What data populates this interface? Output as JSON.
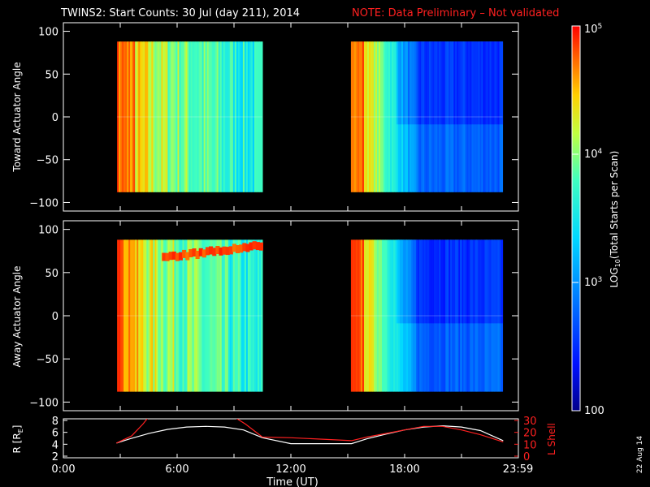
{
  "header": {
    "title": "TWINS2: Start Counts: 30 Jul (day 211), 2014",
    "note": "NOTE: Data Preliminary – Not validated",
    "title_color": "#ffffff",
    "note_color": "#ff2020"
  },
  "date_stamp": "22 Aug 14",
  "chart_data": [
    {
      "type": "heatmap",
      "panel": "toward",
      "ylabel": "Toward Actuator Angle",
      "ylim": [
        -110,
        110
      ],
      "yticks": [
        "100",
        "50",
        "0",
        "−50",
        "−100"
      ],
      "xlim_hours": [
        0,
        24
      ],
      "data_blocks": [
        {
          "start": "2:50",
          "end": "10:30",
          "angle_range": [
            -88,
            88
          ]
        },
        {
          "start": "15:10",
          "end": "23:10",
          "angle_range": [
            -88,
            88
          ]
        }
      ],
      "colorscale": "log10",
      "value_range": [
        100,
        100000
      ]
    },
    {
      "type": "heatmap",
      "panel": "away",
      "ylabel": "Away Actuator Angle",
      "ylim": [
        -110,
        110
      ],
      "yticks": [
        "100",
        "50",
        "0",
        "−50",
        "−100"
      ],
      "xlim_hours": [
        0,
        24
      ],
      "data_blocks": [
        {
          "start": "2:50",
          "end": "10:30",
          "angle_range": [
            -88,
            88
          ]
        },
        {
          "start": "15:10",
          "end": "23:10",
          "angle_range": [
            -88,
            88
          ]
        }
      ],
      "colorscale": "log10",
      "value_range": [
        100,
        100000
      ]
    },
    {
      "type": "line",
      "panel": "orbit",
      "ylabel_left": "R [R",
      "ylabel_left_sub": "E",
      "ylabel_left_end": "]",
      "ylabel_right": "L Shell",
      "yticks_left": [
        "8",
        "6",
        "4",
        "2"
      ],
      "yticks_right": [
        "30",
        "20",
        "10",
        "0"
      ],
      "ylim_left": [
        2,
        8
      ],
      "ylim_right": [
        0,
        30
      ],
      "series": [
        {
          "name": "R",
          "color": "#ffffff",
          "x": [
            2.8,
            3.5,
            4.5,
            5.5,
            6.5,
            7.5,
            8.5,
            9.5,
            10.5,
            12,
            14,
            15.2,
            16,
            17,
            18,
            19,
            20,
            21,
            22,
            23.2
          ],
          "y": [
            4.2,
            4.9,
            5.8,
            6.5,
            6.9,
            7.0,
            6.9,
            6.4,
            5.1,
            4.1,
            4.1,
            4.1,
            4.9,
            5.7,
            6.4,
            6.9,
            7.1,
            6.9,
            6.3,
            4.6
          ]
        },
        {
          "name": "L Shell",
          "color": "#ff2020",
          "x": [
            2.8,
            3.6,
            4.2,
            4.5,
            9.0,
            9.6,
            10.5,
            12,
            14,
            15.2,
            16,
            17,
            18,
            19,
            20,
            21,
            22,
            23.2
          ],
          "y": [
            11,
            17,
            27,
            33,
            33,
            27,
            16,
            15.5,
            14,
            13,
            16,
            19,
            22,
            25,
            25,
            22,
            18,
            12
          ]
        }
      ],
      "xticks": [
        "0:00",
        "6:00",
        "12:00",
        "18:00",
        "23:59"
      ],
      "xlabel": "Time (UT)"
    }
  ],
  "colorbar": {
    "label": "LOG",
    "label_sub": "10",
    "label_rest": "(Total Starts per Scan)",
    "ticks": [
      {
        "base": "10",
        "exp": "5",
        "v": 100000
      },
      {
        "base": "10",
        "exp": "4",
        "v": 10000
      },
      {
        "base": "10",
        "exp": "3",
        "v": 1000
      },
      {
        "base": "100",
        "exp": "",
        "v": 100
      }
    ]
  }
}
